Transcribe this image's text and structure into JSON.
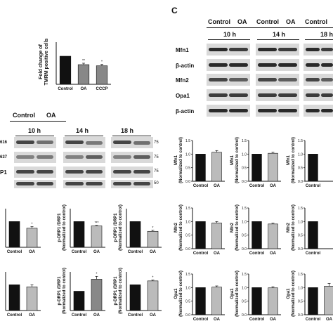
{
  "panel_c_letter": "C",
  "tmrm": {
    "ylabel": "Fold change of\nTMRM positive cells",
    "chart_data": {
      "type": "bar",
      "categories": [
        "Control",
        "OA",
        "CCCP"
      ],
      "values": [
        1.0,
        0.7,
        0.66
      ],
      "errors": [
        0,
        0.05,
        0.05
      ],
      "annotations": [
        "",
        "**",
        "*"
      ],
      "ylim": [
        0,
        1.5
      ],
      "colors": [
        "#111111",
        "#888888",
        "#888888"
      ]
    }
  },
  "blot_drp": {
    "col_labels": [
      "Control",
      "OA"
    ],
    "timepoints": [
      "10 h",
      "14 h",
      "18 h"
    ],
    "row_labels_partial": [
      "616",
      "637",
      "P1"
    ],
    "mw_markers": [
      "75",
      "75",
      "75",
      "50"
    ]
  },
  "blot_c": {
    "col_labels": [
      "Control",
      "OA",
      "Control",
      "OA",
      "Control"
    ],
    "timepoints": [
      "10 h",
      "14 h",
      "18 h"
    ],
    "row_labels": [
      "Mfn1",
      "β-actin",
      "Mfn2",
      "Opa1",
      "β-actin"
    ]
  },
  "drp_charts": [
    {
      "ylabel": "DRP1",
      "chart_data": {
        "type": "bar",
        "categories": [
          "Control",
          "OA"
        ],
        "values": [
          1.0,
          0.74
        ],
        "errors": [
          0,
          0.06
        ],
        "annotations": [
          "",
          "*"
        ],
        "ylim": [
          0,
          1.5
        ],
        "colors": [
          "#111111",
          "#bbbbbb"
        ]
      }
    },
    {
      "ylabel": "p-DRP1 /DRP1\n(Normalized to control)",
      "chart_data": {
        "type": "bar",
        "categories": [
          "Control",
          "OA"
        ],
        "values": [
          1.0,
          0.83
        ],
        "errors": [
          0,
          0.02
        ],
        "annotations": [
          "",
          "***"
        ],
        "ylim": [
          0,
          1.5
        ],
        "colors": [
          "#111111",
          "#bbbbbb"
        ]
      }
    },
    {
      "ylabel": "p-DRP1 /DRP1\n(Normalized to control)",
      "chart_data": {
        "type": "bar",
        "categories": [
          "Control",
          "OA"
        ],
        "values": [
          1.0,
          0.62
        ],
        "errors": [
          0,
          0.04
        ],
        "annotations": [
          "",
          "*"
        ],
        "ylim": [
          0,
          1.5
        ],
        "colors": [
          "#111111",
          "#bbbbbb"
        ]
      }
    },
    {
      "ylabel": "DRP1",
      "chart_data": {
        "type": "bar",
        "categories": [
          "Control",
          "OA"
        ],
        "values": [
          1.0,
          0.92
        ],
        "errors": [
          0,
          0.08
        ],
        "annotations": [
          "",
          ""
        ],
        "ylim": [
          0,
          1.5
        ],
        "colors": [
          "#111111",
          "#bbbbbb"
        ]
      }
    },
    {
      "ylabel": "p-DRP1 /DRP1\n(Normalized to control)",
      "chart_data": {
        "type": "bar",
        "categories": [
          "Control",
          "OA"
        ],
        "values": [
          1.0,
          1.62
        ],
        "errors": [
          0,
          0.15
        ],
        "annotations": [
          "",
          "*"
        ],
        "ylim": [
          0,
          2.0
        ],
        "colors": [
          "#111111",
          "#888888"
        ]
      }
    },
    {
      "ylabel": "p-DRP1 /DRP1\n(Normalized to control)",
      "chart_data": {
        "type": "bar",
        "categories": [
          "Control",
          "OA"
        ],
        "values": [
          1.0,
          1.15
        ],
        "errors": [
          0,
          0.03
        ],
        "annotations": [
          "",
          "*"
        ],
        "ylim": [
          0,
          1.5
        ],
        "colors": [
          "#111111",
          "#bbbbbb"
        ]
      }
    }
  ],
  "c_charts": [
    {
      "ylabel": "Mfn1\n(Normalized to control)",
      "chart_data": {
        "type": "bar",
        "categories": [
          "Control",
          "OA"
        ],
        "values": [
          1.0,
          1.07
        ],
        "errors": [
          0,
          0.06
        ],
        "ylim": [
          0,
          1.5
        ],
        "yticks": [
          "0.0",
          "0.5",
          "1.0",
          "1.5"
        ],
        "colors": [
          "#111111",
          "#bbbbbb"
        ]
      }
    },
    {
      "ylabel": "Mfn1\n(Normalized to control)",
      "chart_data": {
        "type": "bar",
        "categories": [
          "Control",
          "OA"
        ],
        "values": [
          1.0,
          1.03
        ],
        "errors": [
          0,
          0.04
        ],
        "ylim": [
          0,
          1.5
        ],
        "yticks": [
          "0.0",
          "0.5",
          "1.0",
          "1.5"
        ],
        "colors": [
          "#111111",
          "#bbbbbb"
        ]
      }
    },
    {
      "ylabel": "Mfn1\n(Normalized to control)",
      "chart_data": {
        "type": "bar",
        "categories": [
          "Control"
        ],
        "values": [
          1.0
        ],
        "errors": [
          0
        ],
        "ylim": [
          0,
          1.5
        ],
        "yticks": [
          "0.0",
          "0.5",
          "1.0",
          "1.5"
        ],
        "colors": [
          "#111111"
        ]
      }
    },
    {
      "ylabel": "Mfn2\n(Normalized to control)",
      "chart_data": {
        "type": "bar",
        "categories": [
          "Control",
          "OA"
        ],
        "values": [
          1.0,
          0.95
        ],
        "errors": [
          0,
          0.05
        ],
        "ylim": [
          0,
          1.5
        ],
        "yticks": [
          "0.0",
          "0.5",
          "1.0",
          "1.5"
        ],
        "colors": [
          "#111111",
          "#bbbbbb"
        ]
      }
    },
    {
      "ylabel": "Mfn2\n(Normalized to control)",
      "chart_data": {
        "type": "bar",
        "categories": [
          "Control",
          "OA"
        ],
        "values": [
          1.0,
          0.91
        ],
        "errors": [
          0,
          0.03
        ],
        "ylim": [
          0,
          1.5
        ],
        "yticks": [
          "0.0",
          "0.5",
          "1.0",
          "1.5"
        ],
        "colors": [
          "#111111",
          "#bbbbbb"
        ]
      }
    },
    {
      "ylabel": "Mfn2\n(Normalized to control)",
      "chart_data": {
        "type": "bar",
        "categories": [
          "Control"
        ],
        "values": [
          1.0
        ],
        "errors": [
          0
        ],
        "ylim": [
          0,
          1.5
        ],
        "yticks": [
          "0.0",
          "0.5",
          "1.0",
          "1.5"
        ],
        "colors": [
          "#111111"
        ]
      }
    },
    {
      "ylabel": "Opa1\n(Normalized to control)",
      "chart_data": {
        "type": "bar",
        "categories": [
          "Control",
          "OA"
        ],
        "values": [
          1.0,
          1.02
        ],
        "errors": [
          0,
          0.04
        ],
        "ylim": [
          0,
          1.5
        ],
        "yticks": [
          "0.0",
          "0.5",
          "1.0",
          "1.5"
        ],
        "colors": [
          "#111111",
          "#bbbbbb"
        ]
      }
    },
    {
      "ylabel": "Opa1\n(Normalized to control)",
      "chart_data": {
        "type": "bar",
        "categories": [
          "Control",
          "OA"
        ],
        "values": [
          1.0,
          0.99
        ],
        "errors": [
          0,
          0.04
        ],
        "ylim": [
          0,
          1.5
        ],
        "yticks": [
          "0.0",
          "0.5",
          "1.0",
          "1.5"
        ],
        "colors": [
          "#111111",
          "#bbbbbb"
        ]
      }
    },
    {
      "ylabel": "Opa1\n(Normalized to control)",
      "chart_data": {
        "type": "bar",
        "categories": [
          "Control",
          "OA"
        ],
        "values": [
          1.0,
          1.05
        ],
        "errors": [
          0,
          0.1
        ],
        "ylim": [
          0,
          1.5
        ],
        "yticks": [
          "0.0",
          "0.5",
          "1.0",
          "1.5"
        ],
        "colors": [
          "#111111",
          "#bbbbbb"
        ]
      }
    }
  ]
}
